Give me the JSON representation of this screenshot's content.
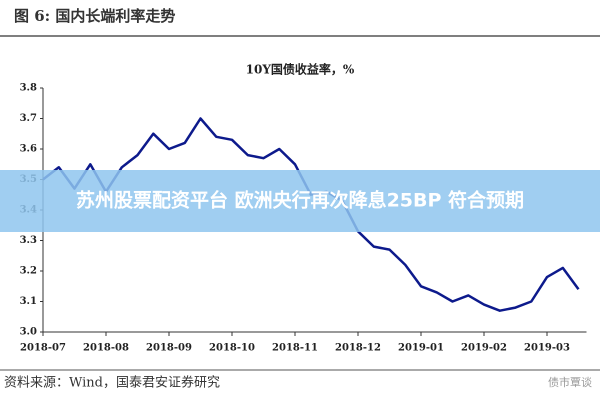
{
  "header": "图 6:  国内长端利率走势",
  "banner": "苏州股票配资平台 欧洲央行再次降息25BP 符合预期",
  "source": "资料来源：Wind，国泰君安证券研究",
  "watermark": "债市覃谈",
  "chart_data": {
    "type": "line",
    "title": "10Y国债收益率，%",
    "categories": [
      "2018-07",
      null,
      null,
      null,
      "2018-08",
      null,
      null,
      null,
      "2018-09",
      null,
      null,
      null,
      "2018-10",
      null,
      null,
      null,
      "2018-11",
      null,
      null,
      null,
      "2018-12",
      null,
      null,
      null,
      "2019-01",
      null,
      null,
      null,
      "2019-02",
      null,
      null,
      null,
      "2019-03",
      null,
      null
    ],
    "values": [
      3.5,
      3.54,
      3.47,
      3.55,
      3.46,
      3.54,
      3.58,
      3.65,
      3.6,
      3.62,
      3.7,
      3.64,
      3.63,
      3.58,
      3.57,
      3.6,
      3.55,
      3.45,
      3.46,
      3.43,
      3.33,
      3.28,
      3.27,
      3.22,
      3.15,
      3.13,
      3.1,
      3.12,
      3.09,
      3.07,
      3.08,
      3.1,
      3.18,
      3.21,
      3.14
    ],
    "color": "#0d1a8c",
    "ylim": [
      3.0,
      3.8
    ],
    "yticks": [
      {
        "value": 3.0,
        "label": "3.0"
      },
      3.1,
      3.2,
      3.3,
      3.4,
      3.5,
      3.6,
      3.7,
      3.8
    ]
  }
}
